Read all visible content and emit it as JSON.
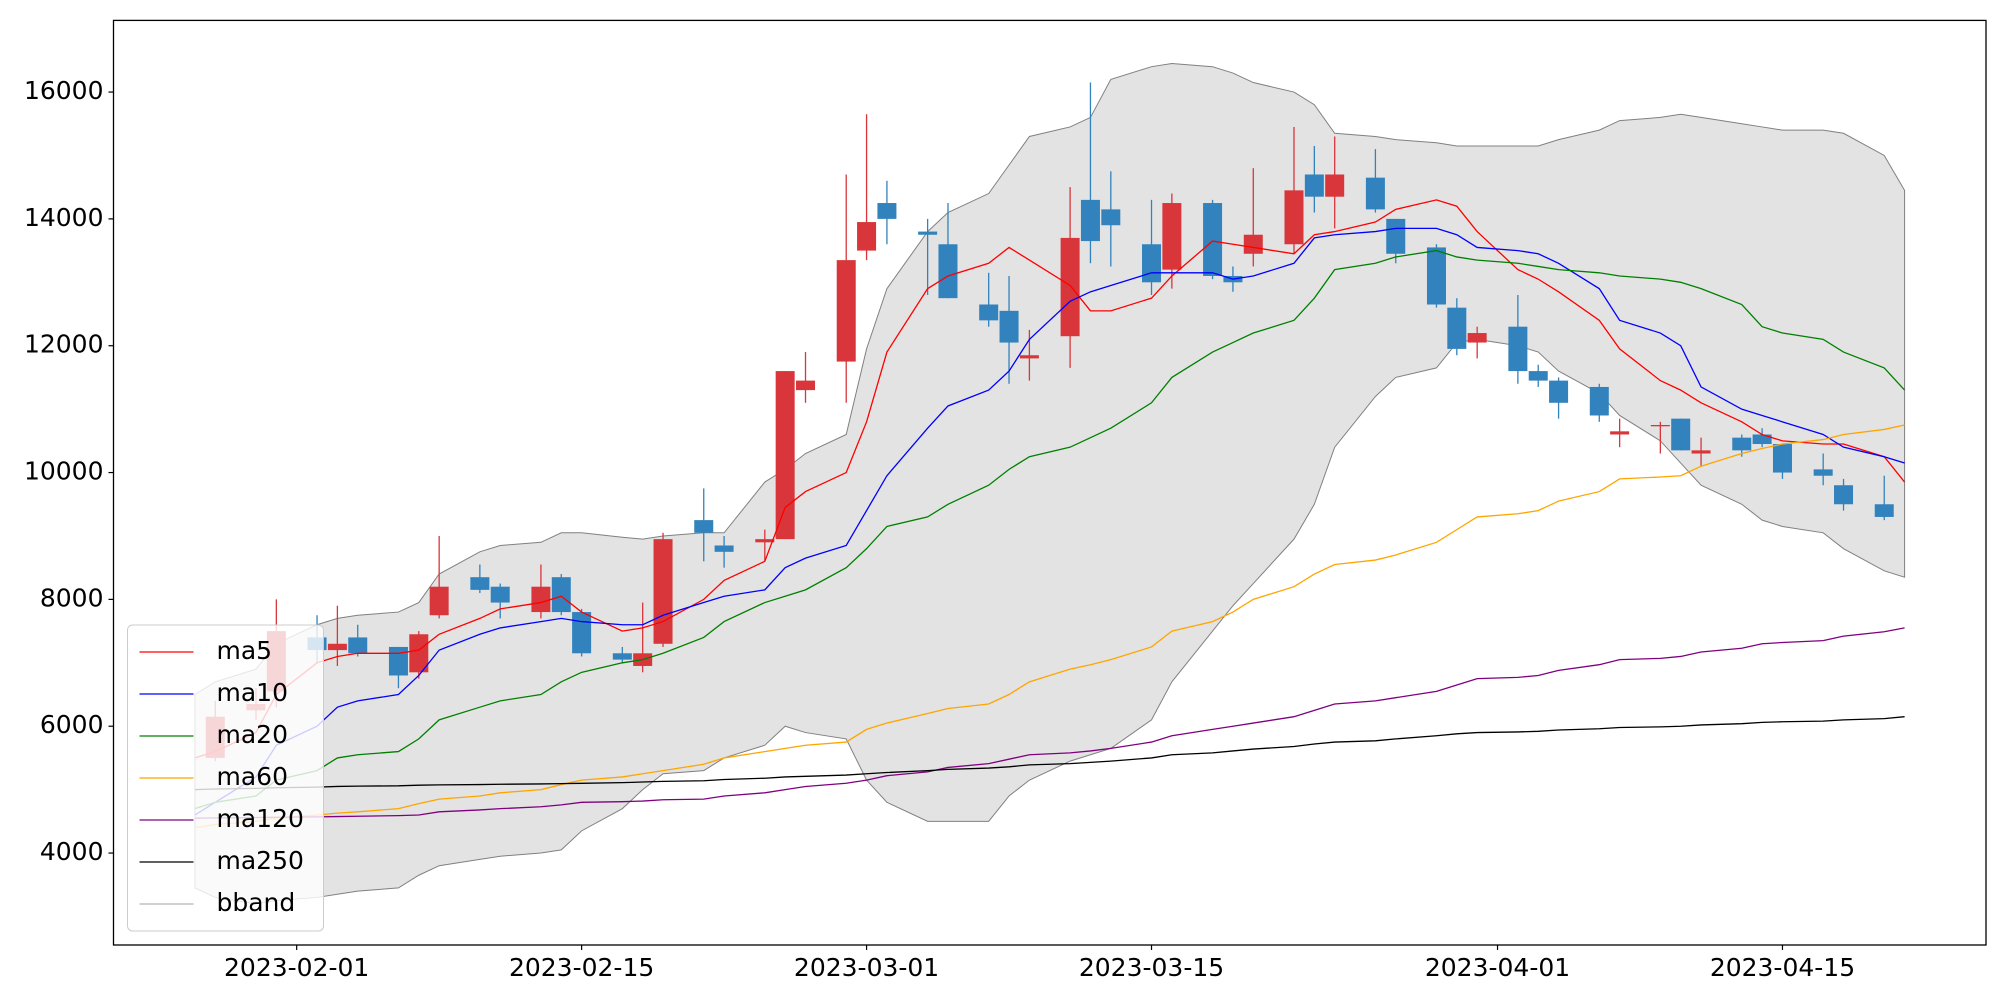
{
  "chart_data": {
    "type": "candlestick",
    "x": [
      "2023-01-27",
      "2023-01-28",
      "2023-01-30",
      "2023-01-31",
      "2023-02-02",
      "2023-02-03",
      "2023-02-04",
      "2023-02-06",
      "2023-02-07",
      "2023-02-08",
      "2023-02-10",
      "2023-02-11",
      "2023-02-13",
      "2023-02-14",
      "2023-02-15",
      "2023-02-17",
      "2023-02-18",
      "2023-02-19",
      "2023-02-21",
      "2023-02-22",
      "2023-02-24",
      "2023-02-25",
      "2023-02-26",
      "2023-02-28",
      "2023-03-01",
      "2023-03-02",
      "2023-03-04",
      "2023-03-05",
      "2023-03-07",
      "2023-03-08",
      "2023-03-09",
      "2023-03-11",
      "2023-03-12",
      "2023-03-13",
      "2023-03-15",
      "2023-03-16",
      "2023-03-18",
      "2023-03-19",
      "2023-03-20",
      "2023-03-22",
      "2023-03-23",
      "2023-03-24",
      "2023-03-26",
      "2023-03-27",
      "2023-03-29",
      "2023-03-30",
      "2023-03-31",
      "2023-04-02",
      "2023-04-03",
      "2023-04-04",
      "2023-04-06",
      "2023-04-07",
      "2023-04-09",
      "2023-04-10",
      "2023-04-11",
      "2023-04-13",
      "2023-04-14",
      "2023-04-15",
      "2023-04-17",
      "2023-04-18",
      "2023-04-20",
      "2023-04-21"
    ],
    "open": [
      null,
      5500,
      6250,
      6550,
      7400,
      7200,
      7400,
      7250,
      6850,
      7750,
      8350,
      8200,
      7800,
      8350,
      7800,
      7150,
      6950,
      7300,
      9250,
      8850,
      8900,
      8950,
      11300,
      11750,
      13500,
      14250,
      13800,
      13600,
      12650,
      12550,
      11800,
      12150,
      14300,
      14150,
      13600,
      13200,
      14250,
      13100,
      13450,
      13600,
      14700,
      14350,
      14650,
      14000,
      13550,
      12600,
      12050,
      12300,
      11600,
      11450,
      11350,
      10600,
      10750,
      10850,
      10300,
      10550,
      10600,
      10450,
      10050,
      9800,
      9500,
      null
    ],
    "high": [
      null,
      6400,
      6600,
      8000,
      7750,
      7900,
      7600,
      7250,
      7500,
      9000,
      8550,
      8250,
      8550,
      8400,
      7850,
      7250,
      7950,
      9050,
      9750,
      9000,
      9100,
      11600,
      11900,
      14700,
      15650,
      14600,
      14000,
      14250,
      13150,
      13100,
      12250,
      14500,
      16150,
      14750,
      14300,
      14400,
      14300,
      13250,
      14800,
      15450,
      15150,
      15300,
      15100,
      14000,
      13600,
      12750,
      12300,
      12800,
      11700,
      11500,
      11400,
      10850,
      10800,
      10850,
      10550,
      10600,
      10700,
      10450,
      10300,
      9900,
      9950,
      null
    ],
    "low": [
      null,
      5450,
      6100,
      6300,
      7000,
      6950,
      7100,
      6600,
      6750,
      7700,
      8100,
      7700,
      7700,
      7750,
      7100,
      7000,
      6850,
      7250,
      8600,
      8500,
      8600,
      8950,
      11100,
      11100,
      13350,
      13600,
      12800,
      12750,
      12300,
      11400,
      11450,
      11650,
      13300,
      13250,
      12800,
      12900,
      13050,
      12850,
      13250,
      13450,
      14100,
      13850,
      14100,
      13300,
      12600,
      11850,
      11800,
      11400,
      11350,
      10850,
      10800,
      10400,
      10300,
      10350,
      10100,
      10250,
      10400,
      9900,
      9800,
      9400,
      9250,
      null
    ],
    "close": [
      null,
      6150,
      6350,
      7500,
      7200,
      7300,
      7150,
      6800,
      7450,
      8200,
      8150,
      7950,
      8200,
      7800,
      7150,
      7050,
      7150,
      8950,
      9050,
      8750,
      8950,
      11600,
      11450,
      13350,
      13950,
      14000,
      13750,
      12750,
      12400,
      12050,
      11850,
      13700,
      13650,
      13900,
      13000,
      14250,
      13100,
      13000,
      13750,
      14450,
      14350,
      14700,
      14150,
      13450,
      12650,
      11950,
      12200,
      11600,
      11450,
      11100,
      10900,
      10650,
      10750,
      10350,
      10350,
      10350,
      10450,
      10000,
      9950,
      9500,
      9300,
      null
    ],
    "up_color": "#d8363a",
    "down_color": "#3182bd",
    "series": [
      {
        "name": "ma5",
        "color": "#ff0000",
        "values": [
          5500,
          5600,
          5900,
          6500,
          7000,
          7100,
          7150,
          7150,
          7200,
          7450,
          7700,
          7850,
          7950,
          8050,
          7800,
          7500,
          7550,
          7650,
          8000,
          8300,
          8600,
          9450,
          9700,
          10000,
          10800,
          11900,
          12900,
          13100,
          13300,
          13550,
          13350,
          12950,
          12550,
          12550,
          12750,
          13100,
          13650,
          13600,
          13550,
          13450,
          13750,
          13800,
          13950,
          14150,
          14300,
          14200,
          13800,
          13200,
          13050,
          12850,
          12400,
          11950,
          11450,
          11300,
          11100,
          10800,
          10600,
          10500,
          10450,
          10450,
          10250,
          9850
        ]
      },
      {
        "name": "ma10",
        "color": "#0000ff",
        "values": [
          4600,
          4800,
          5200,
          5700,
          6000,
          6300,
          6400,
          6500,
          6800,
          7200,
          7450,
          7550,
          7650,
          7700,
          7650,
          7600,
          7600,
          7750,
          7950,
          8050,
          8150,
          8500,
          8650,
          8850,
          9400,
          9950,
          10700,
          11050,
          11300,
          11600,
          12100,
          12700,
          12850,
          12950,
          13150,
          13150,
          13150,
          13050,
          13100,
          13300,
          13700,
          13750,
          13800,
          13850,
          13850,
          13750,
          13550,
          13500,
          13450,
          13300,
          12900,
          12400,
          12200,
          12000,
          11350,
          11000,
          10900,
          10800,
          10600,
          10400,
          10250,
          10150
        ]
      },
      {
        "name": "ma20",
        "color": "#008000",
        "values": [
          4700,
          4800,
          4900,
          5150,
          5300,
          5500,
          5550,
          5600,
          5800,
          6100,
          6300,
          6400,
          6500,
          6700,
          6850,
          7000,
          7050,
          7150,
          7400,
          7650,
          7950,
          8050,
          8150,
          8500,
          8800,
          9150,
          9300,
          9500,
          9800,
          10050,
          10250,
          10400,
          10550,
          10700,
          11100,
          11500,
          11900,
          12050,
          12200,
          12400,
          12750,
          13200,
          13300,
          13400,
          13500,
          13400,
          13350,
          13300,
          13250,
          13200,
          13150,
          13100,
          13050,
          13000,
          12900,
          12650,
          12300,
          12200,
          12100,
          11900,
          11650,
          11300
        ]
      },
      {
        "name": "ma60",
        "color": "#ffa500",
        "values": [
          4400,
          4450,
          4500,
          4550,
          4600,
          4630,
          4650,
          4700,
          4780,
          4850,
          4900,
          4950,
          5000,
          5080,
          5150,
          5200,
          5250,
          5300,
          5400,
          5500,
          5600,
          5650,
          5700,
          5750,
          5950,
          6050,
          6200,
          6280,
          6350,
          6500,
          6700,
          6900,
          6970,
          7050,
          7250,
          7500,
          7650,
          7800,
          8000,
          8200,
          8400,
          8550,
          8620,
          8700,
          8900,
          9100,
          9300,
          9350,
          9400,
          9550,
          9700,
          9900,
          9930,
          9950,
          10100,
          10300,
          10380,
          10450,
          10520,
          10600,
          10680,
          10750
        ]
      },
      {
        "name": "ma120",
        "color": "#800080",
        "values": [
          4550,
          4555,
          4560,
          4565,
          4570,
          4575,
          4580,
          4590,
          4600,
          4650,
          4680,
          4700,
          4730,
          4760,
          4800,
          4810,
          4820,
          4840,
          4850,
          4900,
          4950,
          5000,
          5050,
          5100,
          5150,
          5220,
          5280,
          5350,
          5410,
          5480,
          5550,
          5580,
          5610,
          5650,
          5750,
          5850,
          5950,
          6000,
          6050,
          6150,
          6250,
          6350,
          6400,
          6450,
          6550,
          6650,
          6750,
          6770,
          6800,
          6880,
          6970,
          7050,
          7070,
          7100,
          7170,
          7230,
          7300,
          7320,
          7350,
          7420,
          7490,
          7550
        ]
      },
      {
        "name": "ma250",
        "color": "#000000",
        "values": [
          5000,
          5010,
          5020,
          5030,
          5040,
          5050,
          5055,
          5060,
          5070,
          5075,
          5080,
          5085,
          5090,
          5095,
          5100,
          5110,
          5120,
          5130,
          5140,
          5160,
          5180,
          5200,
          5210,
          5230,
          5250,
          5270,
          5300,
          5320,
          5340,
          5360,
          5390,
          5410,
          5430,
          5450,
          5500,
          5550,
          5580,
          5610,
          5640,
          5680,
          5720,
          5750,
          5770,
          5800,
          5850,
          5880,
          5900,
          5910,
          5920,
          5940,
          5960,
          5980,
          5990,
          6000,
          6020,
          6040,
          6060,
          6070,
          6080,
          6100,
          6120,
          6150
        ]
      }
    ],
    "bband": {
      "name": "bband",
      "color": "#808080",
      "fill": "#e3e3e3",
      "upper": [
        6500,
        6700,
        6900,
        7300,
        7600,
        7700,
        7750,
        7800,
        7950,
        8400,
        8750,
        8850,
        8900,
        9050,
        9050,
        8980,
        8950,
        9000,
        9050,
        9050,
        9850,
        10050,
        10300,
        10600,
        11950,
        12900,
        13800,
        14100,
        14400,
        14850,
        15300,
        15450,
        15600,
        16200,
        16400,
        16450,
        16400,
        16300,
        16150,
        16000,
        15800,
        15350,
        15300,
        15250,
        15200,
        15150,
        15150,
        15150,
        15150,
        15250,
        15400,
        15550,
        15600,
        15650,
        15600,
        15500,
        15450,
        15400,
        15400,
        15350,
        15000,
        14450
      ],
      "lower": [
        3450,
        3300,
        3200,
        3250,
        3300,
        3350,
        3400,
        3450,
        3650,
        3800,
        3900,
        3950,
        4000,
        4050,
        4350,
        4700,
        5000,
        5250,
        5300,
        5500,
        5700,
        6000,
        5900,
        5800,
        5150,
        4800,
        4500,
        4500,
        4500,
        4900,
        5150,
        5450,
        5550,
        5650,
        6100,
        6700,
        7500,
        7900,
        8250,
        8950,
        9500,
        10400,
        11200,
        11500,
        11650,
        12050,
        12100,
        12000,
        11900,
        11600,
        11250,
        10900,
        10500,
        10150,
        9800,
        9500,
        9250,
        9150,
        9050,
        8800,
        8450,
        8350
      ]
    },
    "xlim": [
      "2023-01-23",
      "2023-04-25"
    ],
    "xticks": [
      "2023-02-01",
      "2023-02-15",
      "2023-03-01",
      "2023-03-15",
      "2023-04-01",
      "2023-04-15"
    ],
    "ylim": [
      2550,
      17130
    ],
    "yticks": [
      4000,
      6000,
      8000,
      10000,
      12000,
      14000,
      16000
    ],
    "legend": "lower left"
  }
}
